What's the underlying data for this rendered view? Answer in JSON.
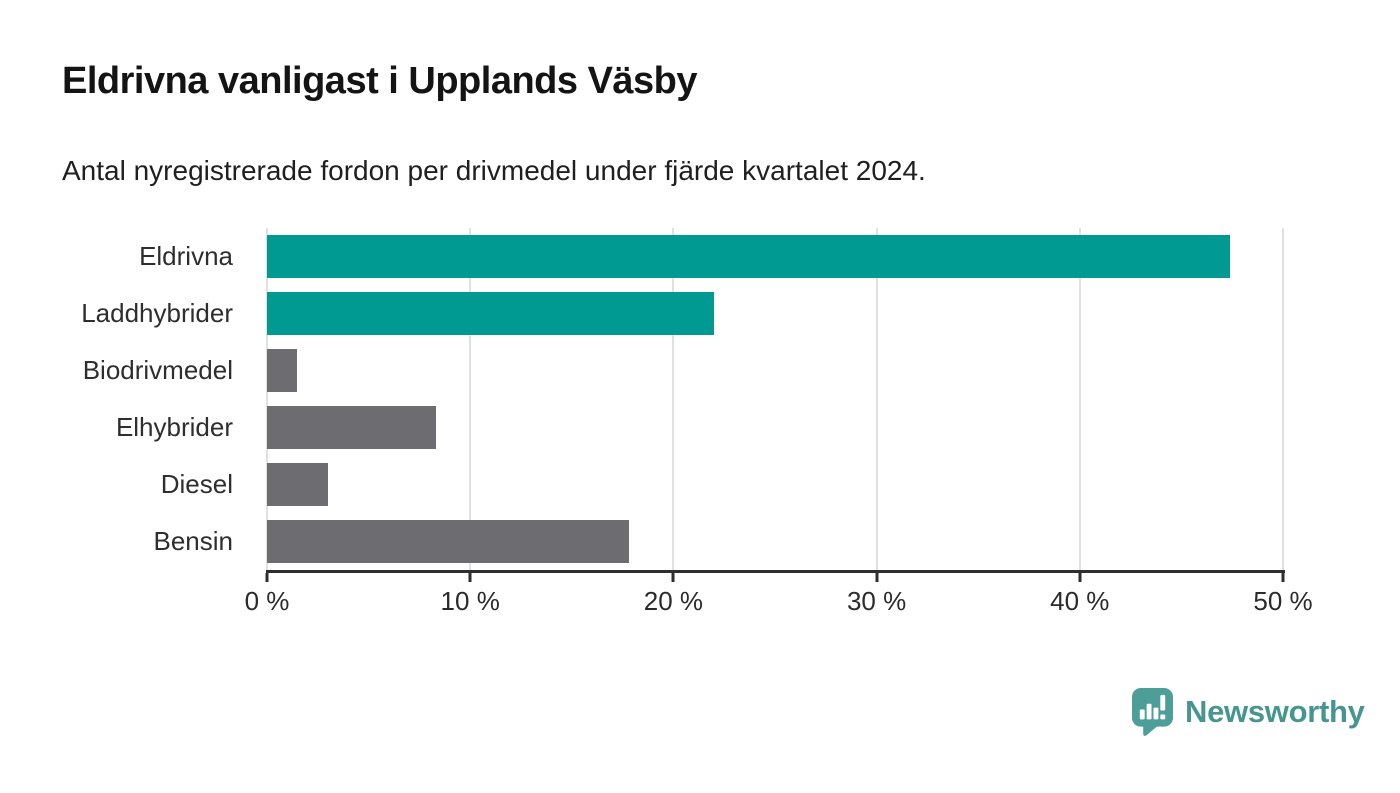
{
  "header": {
    "title": "Eldrivna vanligast i Upplands Väsby",
    "subtitle": "Antal nyregistrerade fordon per drivmedel under fjärde kvartalet 2024."
  },
  "chart_data": {
    "type": "bar",
    "orientation": "horizontal",
    "title": "Eldrivna vanligast i Upplands Väsby",
    "subtitle": "Antal nyregistrerade fordon per drivmedel under fjärde kvartalet 2024.",
    "categories": [
      "Eldrivna",
      "Laddhybrider",
      "Biodrivmedel",
      "Elhybrider",
      "Diesel",
      "Bensin"
    ],
    "values": [
      47.4,
      22.0,
      1.5,
      8.3,
      3.0,
      17.8
    ],
    "unit": "%",
    "bar_colors": [
      "#009A93",
      "#009A93",
      "#6C6C71",
      "#6C6C71",
      "#6C6C71",
      "#6C6C71"
    ],
    "highlight_color": "#009A93",
    "default_color": "#6C6C71",
    "xlim": [
      0,
      50
    ],
    "x_ticks": [
      0,
      10,
      20,
      30,
      40,
      50
    ],
    "x_tick_labels": [
      "0 %",
      "10 %",
      "20 %",
      "30 %",
      "40 %",
      "50 %"
    ],
    "grid": true,
    "gridline_color": "#e1e1e1",
    "axis_color": "#2e2e2e",
    "legend": false
  },
  "branding": {
    "logo_text": "Newsworthy",
    "logo_text_color": "#46968F",
    "logo_mark_color": "#4D9E99",
    "logo_icon": "newsworthy-pin-barchart-icon"
  }
}
